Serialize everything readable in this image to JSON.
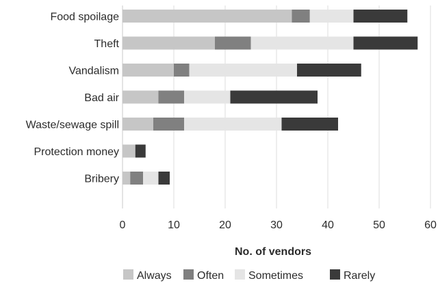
{
  "chart_data": {
    "type": "bar",
    "orientation": "horizontal",
    "stacked": true,
    "categories": [
      "Food spoilage",
      "Theft",
      "Vandalism",
      "Bad air",
      "Waste/sewage spill",
      "Protection money",
      "Bribery"
    ],
    "series": [
      {
        "name": "Always",
        "color": "#c6c6c6",
        "values": [
          33,
          18,
          10,
          7,
          6,
          2.5,
          1.5
        ]
      },
      {
        "name": "Often",
        "color": "#808080",
        "values": [
          3.5,
          7,
          3,
          5,
          6,
          0,
          2.5
        ]
      },
      {
        "name": "Sometimes",
        "color": "#e5e5e5",
        "values": [
          8.5,
          20,
          21,
          9,
          19,
          0,
          3
        ]
      },
      {
        "name": "Rarely",
        "color": "#3a3a3a",
        "values": [
          10.5,
          12.5,
          12.5,
          17,
          11,
          2,
          2.2
        ]
      }
    ],
    "xlabel": "No. of vendors",
    "ylabel": "",
    "xlim": [
      0,
      60
    ],
    "xticks": [
      "0",
      "10",
      "20",
      "30",
      "40",
      "50",
      "60"
    ],
    "grid": "vertical",
    "legend": "bottom"
  }
}
